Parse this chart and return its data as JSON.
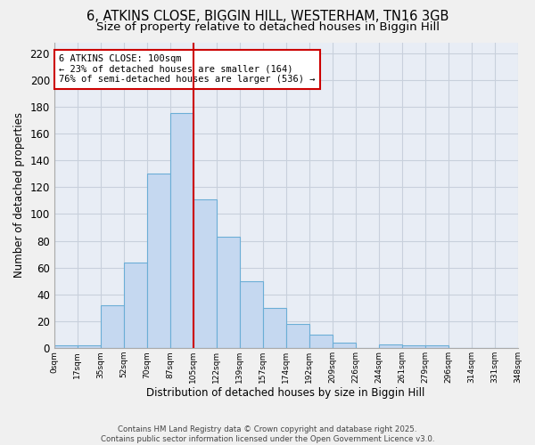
{
  "title1": "6, ATKINS CLOSE, BIGGIN HILL, WESTERHAM, TN16 3GB",
  "title2": "Size of property relative to detached houses in Biggin Hill",
  "xlabel": "Distribution of detached houses by size in Biggin Hill",
  "ylabel": "Number of detached properties",
  "bar_values": [
    2,
    2,
    32,
    64,
    130,
    175,
    111,
    83,
    50,
    30,
    18,
    10,
    4,
    0,
    3,
    2,
    2,
    0,
    0,
    0
  ],
  "x_labels": [
    "0sqm",
    "17sqm",
    "35sqm",
    "52sqm",
    "70sqm",
    "87sqm",
    "105sqm",
    "122sqm",
    "139sqm",
    "157sqm",
    "174sqm",
    "192sqm",
    "209sqm",
    "226sqm",
    "244sqm",
    "261sqm",
    "279sqm",
    "296sqm",
    "314sqm",
    "331sqm",
    "348sqm"
  ],
  "bar_color": "#c5d8f0",
  "bar_edge_color": "#6baed6",
  "bg_color": "#e8edf5",
  "fig_bg_color": "#f0f0f0",
  "grid_color": "#c8d0dc",
  "red_line_x": 5.5,
  "annotation_line1": "6 ATKINS CLOSE: 100sqm",
  "annotation_line2": "← 23% of detached houses are smaller (164)",
  "annotation_line3": "76% of semi-detached houses are larger (536) →",
  "annotation_box_color": "#ffffff",
  "annotation_border_color": "#cc0000",
  "ylim_max": 228,
  "yticks": [
    0,
    20,
    40,
    60,
    80,
    100,
    120,
    140,
    160,
    180,
    200,
    220
  ],
  "footnote_line1": "Contains HM Land Registry data © Crown copyright and database right 2025.",
  "footnote_line2": "Contains public sector information licensed under the Open Government Licence v3.0."
}
